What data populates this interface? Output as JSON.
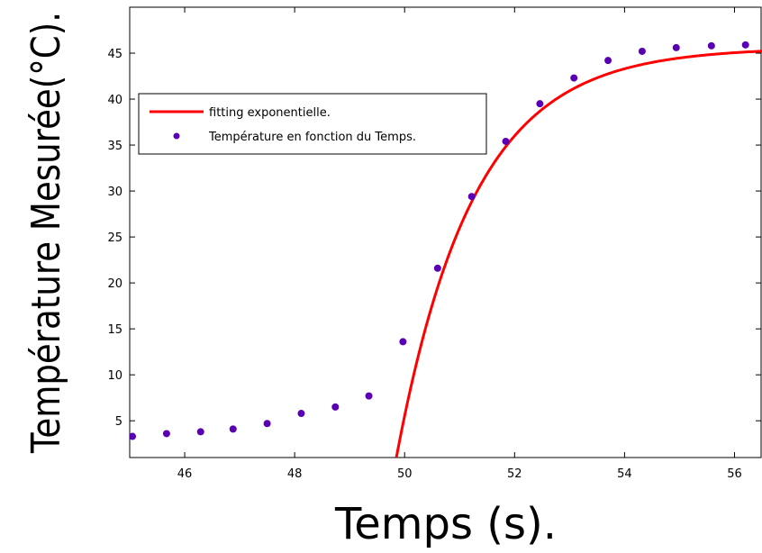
{
  "chart_data": {
    "type": "scatter",
    "title": "",
    "xlabel": "Temps (s).",
    "ylabel": "Température Mesurée(°C).",
    "xlim": [
      45,
      56.5
    ],
    "ylim": [
      1,
      50
    ],
    "xticks": [
      46,
      48,
      50,
      52,
      54,
      56
    ],
    "yticks": [
      5,
      10,
      15,
      20,
      25,
      30,
      35,
      40,
      45
    ],
    "grid": false,
    "legend_position": "upper-left",
    "series": [
      {
        "name": "fitting exponentielle.",
        "kind": "line",
        "color": "#ff0000",
        "model": {
          "form": "a - b*exp(-(x - c)/tau)",
          "a": 45.6,
          "b": 44.6,
          "c": 49.85,
          "tau": 1.4
        },
        "x_range": [
          49.85,
          56.5
        ]
      },
      {
        "name": "Température en fonction du Temps.",
        "kind": "markers",
        "color": "#5a00b4",
        "x": [
          45.05,
          45.67,
          46.29,
          46.88,
          47.5,
          48.12,
          48.74,
          49.35,
          49.97,
          50.6,
          51.22,
          51.84,
          52.46,
          53.08,
          53.7,
          54.32,
          54.94,
          55.58,
          56.2
        ],
        "y": [
          3.3,
          3.6,
          3.8,
          4.1,
          4.7,
          5.8,
          6.5,
          7.7,
          13.6,
          21.6,
          29.4,
          35.4,
          39.5,
          42.3,
          44.2,
          45.2,
          45.6,
          45.8,
          45.9
        ]
      }
    ]
  }
}
